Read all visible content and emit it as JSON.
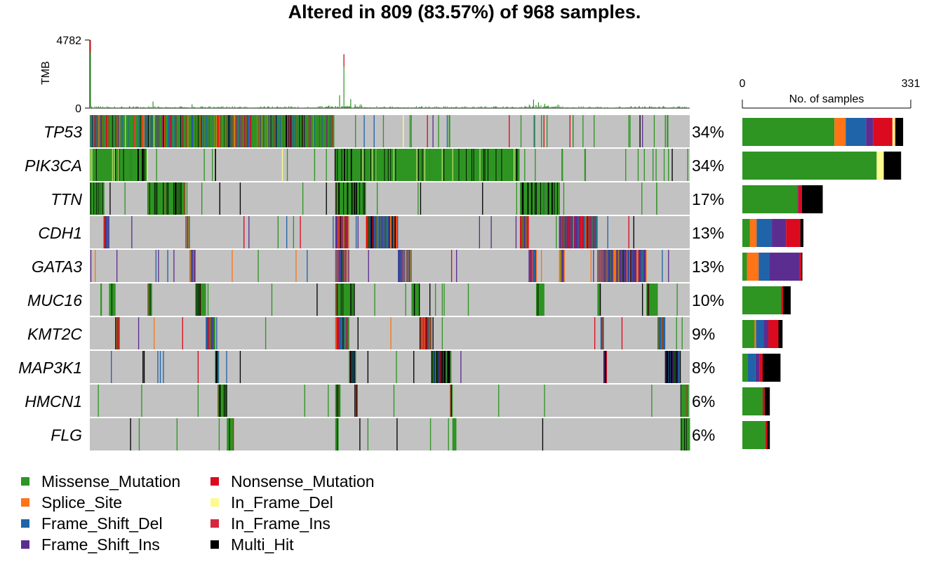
{
  "chart_data": {
    "type": "oncoplot",
    "title": "Altered in 809 (83.57%) of 968 samples.",
    "n_samples": 968,
    "tmb_axis": {
      "label": "TMB",
      "ticks": [
        "4782",
        "0"
      ],
      "max": 4782
    },
    "bar_axis": {
      "label": "No. of samples",
      "ticks": [
        "0",
        "331"
      ],
      "max": 331
    },
    "colors": {
      "Missense_Mutation": "#2e9522",
      "Splice_Site": "#ff7417",
      "Frame_Shift_Del": "#1f64a8",
      "Frame_Shift_Ins": "#5c2d91",
      "Nonsense_Mutation": "#dc0a1e",
      "In_Frame_Del": "#fbfb8f",
      "In_Frame_Ins": "#d5283f",
      "Multi_Hit": "#000000",
      "none": "#c2c2c2"
    },
    "genes": [
      {
        "name": "TP53",
        "percent": "34%",
        "counts": {
          "Missense_Mutation": 181,
          "Splice_Site": 22,
          "Frame_Shift_Del": 40,
          "Frame_Shift_Ins": 14,
          "Nonsense_Mutation": 38,
          "In_Frame_Del": 5,
          "In_Frame_Ins": 1,
          "Multi_Hit": 15
        }
      },
      {
        "name": "PIK3CA",
        "percent": "34%",
        "counts": {
          "Missense_Mutation": 264,
          "In_Frame_Del": 14,
          "Multi_Hit": 34
        }
      },
      {
        "name": "TTN",
        "percent": "17%",
        "counts": {
          "Missense_Mutation": 108,
          "Frame_Shift_Ins": 2,
          "Nonsense_Mutation": 7,
          "Multi_Hit": 41
        }
      },
      {
        "name": "CDH1",
        "percent": "13%",
        "counts": {
          "Missense_Mutation": 15,
          "Splice_Site": 13,
          "Frame_Shift_Del": 30,
          "Frame_Shift_Ins": 28,
          "Nonsense_Mutation": 28,
          "Multi_Hit": 6
        }
      },
      {
        "name": "GATA3",
        "percent": "13%",
        "counts": {
          "Missense_Mutation": 9,
          "Splice_Site": 23,
          "Frame_Shift_Del": 21,
          "Frame_Shift_Ins": 60,
          "Nonsense_Mutation": 3,
          "Multi_Hit": 2
        }
      },
      {
        "name": "MUC16",
        "percent": "10%",
        "counts": {
          "Missense_Mutation": 76,
          "Nonsense_Mutation": 4,
          "Multi_Hit": 15
        }
      },
      {
        "name": "KMT2C",
        "percent": "9%",
        "counts": {
          "Missense_Mutation": 24,
          "Splice_Site": 3,
          "Frame_Shift_Del": 15,
          "Frame_Shift_Ins": 9,
          "Nonsense_Mutation": 20,
          "Multi_Hit": 8
        }
      },
      {
        "name": "MAP3K1",
        "percent": "8%",
        "counts": {
          "Missense_Mutation": 11,
          "Frame_Shift_Del": 15,
          "Frame_Shift_Ins": 8,
          "Nonsense_Mutation": 6,
          "Multi_Hit": 35
        }
      },
      {
        "name": "HMCN1",
        "percent": "6%",
        "counts": {
          "Missense_Mutation": 40,
          "Nonsense_Mutation": 4,
          "Multi_Hit": 10
        }
      },
      {
        "name": "FLG",
        "percent": "6%",
        "counts": {
          "Missense_Mutation": 45,
          "Nonsense_Mutation": 4,
          "Multi_Hit": 5
        }
      }
    ],
    "tmb_peaks": [
      {
        "sample": 1,
        "value": 4782
      },
      {
        "sample": 102,
        "value": 460
      },
      {
        "sample": 165,
        "value": 260
      },
      {
        "sample": 403,
        "value": 900
      },
      {
        "sample": 410,
        "value": 3780
      },
      {
        "sample": 421,
        "value": 630
      },
      {
        "sample": 716,
        "value": 600
      },
      {
        "sample": 724,
        "value": 400
      },
      {
        "sample": 734,
        "value": 300
      }
    ]
  },
  "legend": {
    "columns": [
      [
        "Missense_Mutation",
        "Splice_Site",
        "Frame_Shift_Del",
        "Frame_Shift_Ins"
      ],
      [
        "Nonsense_Mutation",
        "In_Frame_Del",
        "In_Frame_Ins",
        "Multi_Hit"
      ]
    ]
  }
}
